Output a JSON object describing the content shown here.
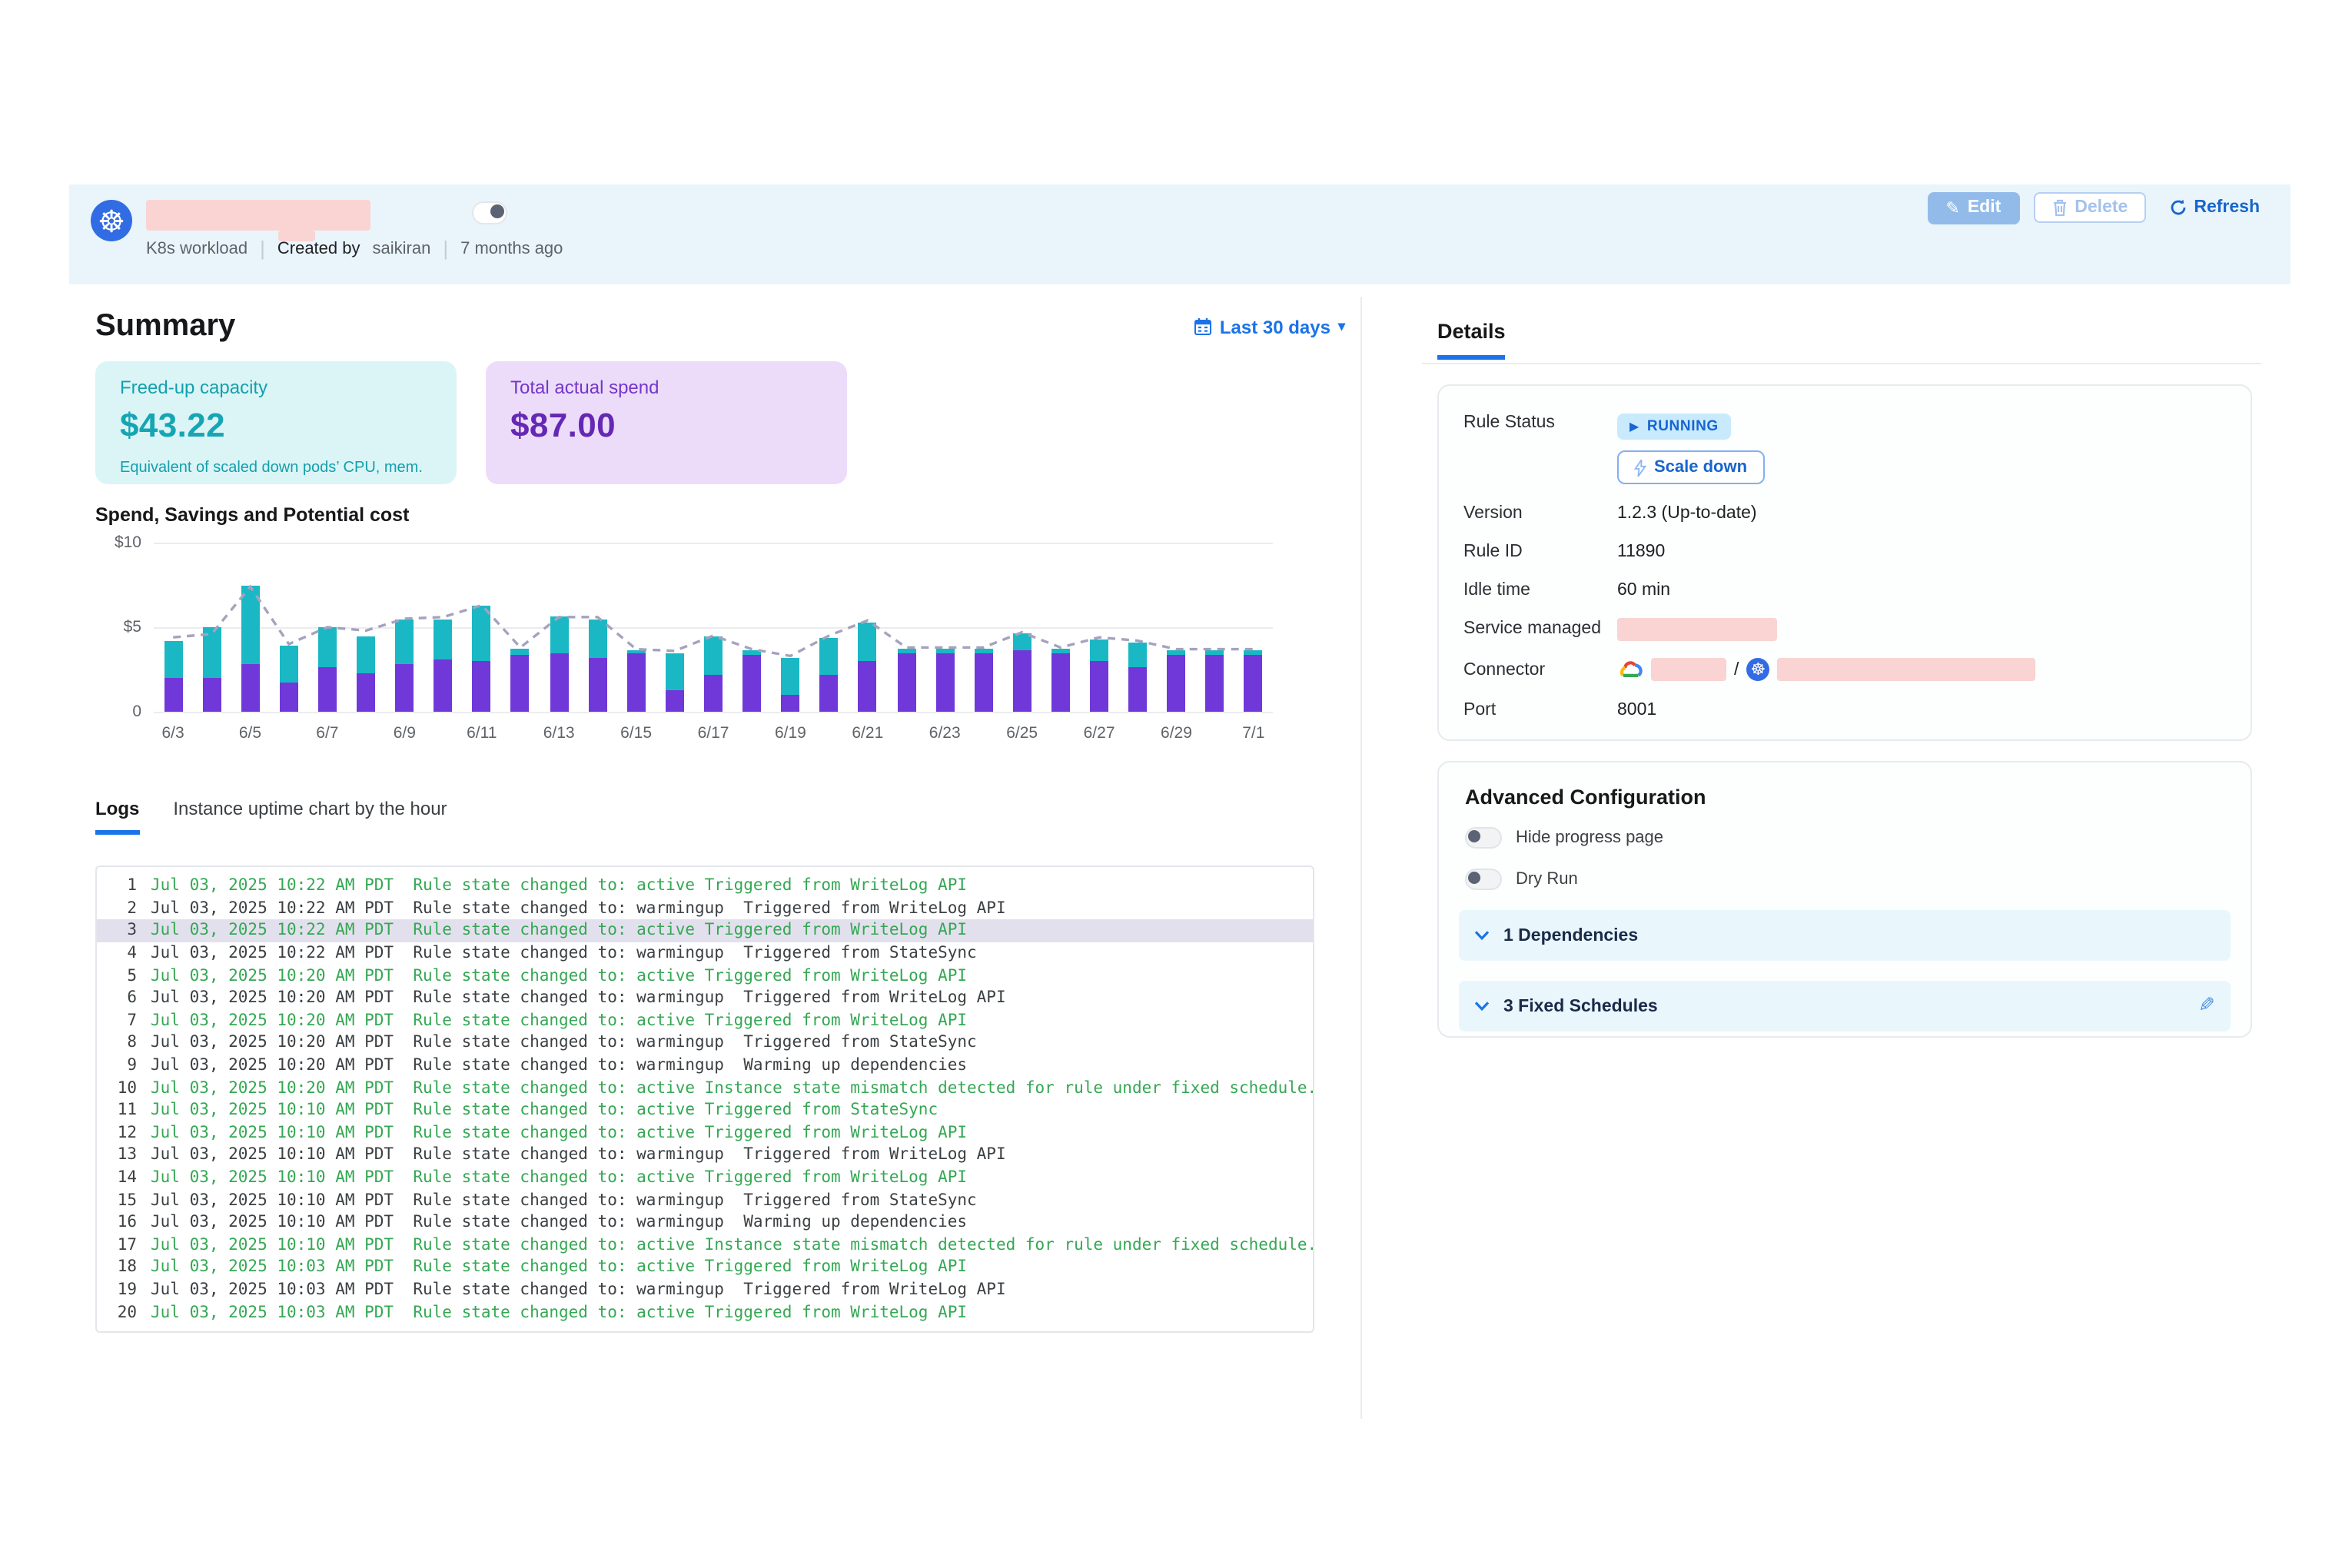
{
  "header": {
    "type_label": "K8s workload",
    "created_by_label": "Created by",
    "created_by_user": "saikiran",
    "age": "7 months ago",
    "edit_label": "Edit",
    "delete_label": "Delete",
    "refresh_label": "Refresh"
  },
  "summary": {
    "title": "Summary",
    "date_filter_label": "Last 30 days",
    "freed_card": {
      "label": "Freed-up capacity",
      "value": "$43.22",
      "caption": "Equivalent of scaled down pods’ CPU, mem."
    },
    "spend_card": {
      "label": "Total actual spend",
      "value": "$87.00"
    }
  },
  "chart_data": {
    "type": "bar",
    "stacked": true,
    "title": "Spend, Savings and Potential cost",
    "categories": [
      "6/3",
      "6/4",
      "6/5",
      "6/6",
      "6/7",
      "6/8",
      "6/9",
      "6/10",
      "6/11",
      "6/12",
      "6/13",
      "6/14",
      "6/15",
      "6/16",
      "6/17",
      "6/18",
      "6/19",
      "6/20",
      "6/21",
      "6/22",
      "6/23",
      "6/24",
      "6/25",
      "6/26",
      "6/27",
      "6/28",
      "6/29",
      "6/30",
      "7/1"
    ],
    "series": [
      {
        "name": "Spend",
        "type": "bar",
        "color": "#7038d8",
        "values": [
          2.0,
          2.0,
          2.8,
          1.7,
          2.6,
          2.3,
          2.8,
          3.1,
          3.0,
          3.4,
          3.5,
          3.2,
          3.5,
          1.3,
          2.2,
          3.4,
          1.0,
          2.2,
          3.0,
          3.5,
          3.5,
          3.5,
          3.6,
          3.5,
          3.0,
          2.6,
          3.4,
          3.4,
          3.4
        ]
      },
      {
        "name": "Savings",
        "type": "bar",
        "color": "#1ab8c4",
        "values": [
          2.2,
          3.0,
          4.7,
          2.2,
          2.4,
          2.2,
          2.7,
          2.4,
          3.3,
          0.3,
          2.1,
          2.3,
          0.1,
          2.2,
          2.3,
          0.2,
          2.2,
          2.2,
          2.3,
          0.2,
          0.2,
          0.2,
          1.0,
          0.2,
          1.3,
          1.5,
          0.2,
          0.2,
          0.2
        ]
      },
      {
        "name": "Potential cost",
        "type": "line",
        "style": "dashed",
        "color": "#a6a2bd",
        "values": [
          4.4,
          4.6,
          7.4,
          4.0,
          5.0,
          4.8,
          5.5,
          5.6,
          6.3,
          3.8,
          5.6,
          5.6,
          3.7,
          3.6,
          4.5,
          3.7,
          3.3,
          4.5,
          5.4,
          3.8,
          3.8,
          3.8,
          4.7,
          3.8,
          4.4,
          4.2,
          3.7,
          3.7,
          3.7
        ]
      }
    ],
    "yticks": [
      "$10",
      "$5",
      "0"
    ],
    "ylim": [
      0,
      10
    ],
    "x_tick_every": 2,
    "grid": true,
    "legend": "none"
  },
  "tabs": {
    "logs": "Logs",
    "uptime": "Instance uptime chart by the hour"
  },
  "logs": [
    {
      "n": 1,
      "time": "Jul 03, 2025 10:22 AM PDT",
      "msg": "Rule state changed to: active Triggered from WriteLog API",
      "variant": "green",
      "selected": false
    },
    {
      "n": 2,
      "time": "Jul 03, 2025 10:22 AM PDT",
      "msg": "Rule state changed to: warmingup  Triggered from WriteLog API",
      "variant": "dark",
      "selected": false
    },
    {
      "n": 3,
      "time": "Jul 03, 2025 10:22 AM PDT",
      "msg": "Rule state changed to: active Triggered from WriteLog API",
      "variant": "green",
      "selected": true
    },
    {
      "n": 4,
      "time": "Jul 03, 2025 10:22 AM PDT",
      "msg": "Rule state changed to: warmingup  Triggered from StateSync",
      "variant": "dark",
      "selected": false
    },
    {
      "n": 5,
      "time": "Jul 03, 2025 10:20 AM PDT",
      "msg": "Rule state changed to: active Triggered from WriteLog API",
      "variant": "green",
      "selected": false
    },
    {
      "n": 6,
      "time": "Jul 03, 2025 10:20 AM PDT",
      "msg": "Rule state changed to: warmingup  Triggered from WriteLog API",
      "variant": "dark",
      "selected": false
    },
    {
      "n": 7,
      "time": "Jul 03, 2025 10:20 AM PDT",
      "msg": "Rule state changed to: active Triggered from WriteLog API",
      "variant": "green",
      "selected": false
    },
    {
      "n": 8,
      "time": "Jul 03, 2025 10:20 AM PDT",
      "msg": "Rule state changed to: warmingup  Triggered from StateSync",
      "variant": "dark",
      "selected": false
    },
    {
      "n": 9,
      "time": "Jul 03, 2025 10:20 AM PDT",
      "msg": "Rule state changed to: warmingup  Warming up dependencies",
      "variant": "dark",
      "selected": false
    },
    {
      "n": 10,
      "time": "Jul 03, 2025 10:20 AM PDT",
      "msg": "Rule state changed to: active Instance state mismatch detected for rule under fixed schedule. Warming up",
      "variant": "green",
      "selected": false
    },
    {
      "n": 11,
      "time": "Jul 03, 2025 10:10 AM PDT",
      "msg": "Rule state changed to: active Triggered from StateSync",
      "variant": "green",
      "selected": false
    },
    {
      "n": 12,
      "time": "Jul 03, 2025 10:10 AM PDT",
      "msg": "Rule state changed to: active Triggered from WriteLog API",
      "variant": "green",
      "selected": false
    },
    {
      "n": 13,
      "time": "Jul 03, 2025 10:10 AM PDT",
      "msg": "Rule state changed to: warmingup  Triggered from WriteLog API",
      "variant": "dark",
      "selected": false
    },
    {
      "n": 14,
      "time": "Jul 03, 2025 10:10 AM PDT",
      "msg": "Rule state changed to: active Triggered from WriteLog API",
      "variant": "green",
      "selected": false
    },
    {
      "n": 15,
      "time": "Jul 03, 2025 10:10 AM PDT",
      "msg": "Rule state changed to: warmingup  Triggered from StateSync",
      "variant": "dark",
      "selected": false
    },
    {
      "n": 16,
      "time": "Jul 03, 2025 10:10 AM PDT",
      "msg": "Rule state changed to: warmingup  Warming up dependencies",
      "variant": "dark",
      "selected": false
    },
    {
      "n": 17,
      "time": "Jul 03, 2025 10:10 AM PDT",
      "msg": "Rule state changed to: active Instance state mismatch detected for rule under fixed schedule. Warming up",
      "variant": "green",
      "selected": false
    },
    {
      "n": 18,
      "time": "Jul 03, 2025 10:03 AM PDT",
      "msg": "Rule state changed to: active Triggered from WriteLog API",
      "variant": "green",
      "selected": false
    },
    {
      "n": 19,
      "time": "Jul 03, 2025 10:03 AM PDT",
      "msg": "Rule state changed to: warmingup  Triggered from WriteLog API",
      "variant": "dark",
      "selected": false
    },
    {
      "n": 20,
      "time": "Jul 03, 2025 10:03 AM PDT",
      "msg": "Rule state changed to: active Triggered from WriteLog API",
      "variant": "green",
      "selected": false
    }
  ],
  "details": {
    "tab_label": "Details",
    "rule_status_label": "Rule Status",
    "rule_status_value": "RUNNING",
    "scale_down_label": "Scale down",
    "version_label": "Version",
    "version_value": "1.2.3 (Up-to-date)",
    "rule_id_label": "Rule ID",
    "rule_id_value": "11890",
    "idle_time_label": "Idle time",
    "idle_time_value": "60 min",
    "service_managed_label": "Service managed",
    "connector_label": "Connector",
    "connector_separator": "/",
    "port_label": "Port",
    "port_value": "8001"
  },
  "advanced": {
    "title": "Advanced Configuration",
    "toggles": [
      {
        "label": "Hide progress page",
        "on": false
      },
      {
        "label": "Dry Run",
        "on": false
      }
    ],
    "sections": [
      {
        "label": "1 Dependencies",
        "editable": false
      },
      {
        "label": "3 Fixed Schedules",
        "editable": true
      }
    ]
  },
  "colors": {
    "accent_blue": "#1a73e8",
    "header_band": "#e9f5fb",
    "bar_spend_purple": "#7038d8",
    "bar_savings_teal": "#1ab8c4",
    "potential_line": "#a6a2bd",
    "log_green": "#34a853",
    "redaction_pink": "#f9d4d2"
  }
}
